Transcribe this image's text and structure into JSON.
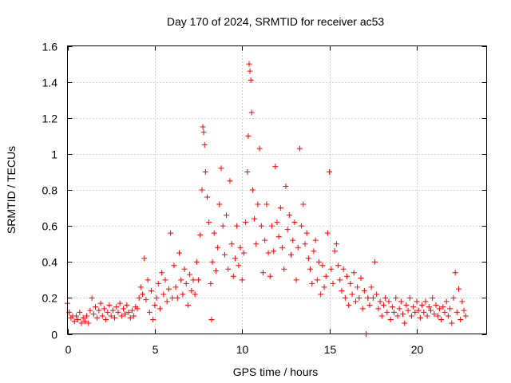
{
  "chart_data": {
    "type": "scatter",
    "title": "Day 170 of 2024, SRMTID for receiver ac53",
    "xlabel": "GPS time / hours",
    "ylabel": "SRMTID / TECUs",
    "xlim": [
      0,
      24
    ],
    "ylim": [
      0,
      1.6
    ],
    "x_ticks": [
      0,
      5,
      10,
      15,
      20
    ],
    "x_tick_labels": [
      "0",
      "5",
      "10",
      "15",
      "20"
    ],
    "y_ticks": [
      0,
      0.2,
      0.4,
      0.6,
      0.8,
      1.0,
      1.2,
      1.4,
      1.6
    ],
    "y_tick_labels": [
      "0",
      "0.2",
      "0.4",
      "0.6",
      "0.8",
      "1",
      "1.2",
      "1.4",
      "1.6"
    ],
    "grid": true,
    "marker": "+",
    "color": "#ff0000",
    "series": [
      {
        "name": "SRMTID",
        "points": [
          [
            0.0,
            0.17
          ],
          [
            0.1,
            0.12
          ],
          [
            0.2,
            0.09
          ],
          [
            0.3,
            0.1
          ],
          [
            0.4,
            0.07
          ],
          [
            0.5,
            0.1
          ],
          [
            0.6,
            0.08
          ],
          [
            0.7,
            0.12
          ],
          [
            0.8,
            0.06
          ],
          [
            0.9,
            0.09
          ],
          [
            1.0,
            0.07
          ],
          [
            1.1,
            0.1
          ],
          [
            1.2,
            0.06
          ],
          [
            1.3,
            0.13
          ],
          [
            1.4,
            0.2
          ],
          [
            1.5,
            0.11
          ],
          [
            1.6,
            0.15
          ],
          [
            1.7,
            0.09
          ],
          [
            1.8,
            0.13
          ],
          [
            1.9,
            0.17
          ],
          [
            2.0,
            0.1
          ],
          [
            2.1,
            0.14
          ],
          [
            2.2,
            0.08
          ],
          [
            2.3,
            0.12
          ],
          [
            2.4,
            0.16
          ],
          [
            2.5,
            0.1
          ],
          [
            2.6,
            0.13
          ],
          [
            2.7,
            0.09
          ],
          [
            2.8,
            0.15
          ],
          [
            2.9,
            0.12
          ],
          [
            3.0,
            0.17
          ],
          [
            3.1,
            0.1
          ],
          [
            3.2,
            0.14
          ],
          [
            3.3,
            0.11
          ],
          [
            3.4,
            0.16
          ],
          [
            3.5,
            0.12
          ],
          [
            3.6,
            0.09
          ],
          [
            3.7,
            0.13
          ],
          [
            3.8,
            0.1
          ],
          [
            3.9,
            0.15
          ],
          [
            4.0,
            0.14
          ],
          [
            4.1,
            0.2
          ],
          [
            4.2,
            0.26
          ],
          [
            4.3,
            0.22
          ],
          [
            4.4,
            0.42
          ],
          [
            4.5,
            0.19
          ],
          [
            4.6,
            0.3
          ],
          [
            4.7,
            0.12
          ],
          [
            4.8,
            0.24
          ],
          [
            4.9,
            0.08
          ],
          [
            5.0,
            0.16
          ],
          [
            5.1,
            0.2
          ],
          [
            5.2,
            0.28
          ],
          [
            5.3,
            0.14
          ],
          [
            5.4,
            0.34
          ],
          [
            5.5,
            0.22
          ],
          [
            5.6,
            0.3
          ],
          [
            5.7,
            0.18
          ],
          [
            5.8,
            0.25
          ],
          [
            5.9,
            0.56
          ],
          [
            6.0,
            0.2
          ],
          [
            6.1,
            0.38
          ],
          [
            6.2,
            0.26
          ],
          [
            6.3,
            0.2
          ],
          [
            6.4,
            0.45
          ],
          [
            6.5,
            0.3
          ],
          [
            6.6,
            0.22
          ],
          [
            6.7,
            0.36
          ],
          [
            6.8,
            0.28
          ],
          [
            6.9,
            0.16
          ],
          [
            7.0,
            0.33
          ],
          [
            7.1,
            0.24
          ],
          [
            7.2,
            0.3
          ],
          [
            7.3,
            0.22
          ],
          [
            7.4,
            0.4
          ],
          [
            7.5,
            0.3
          ],
          [
            7.6,
            0.55
          ],
          [
            7.7,
            0.8
          ],
          [
            7.75,
            1.15
          ],
          [
            7.8,
            1.12
          ],
          [
            7.85,
            1.05
          ],
          [
            7.9,
            0.9
          ],
          [
            8.0,
            0.76
          ],
          [
            8.1,
            0.62
          ],
          [
            8.2,
            0.28
          ],
          [
            8.25,
            0.08
          ],
          [
            8.3,
            0.4
          ],
          [
            8.4,
            0.56
          ],
          [
            8.5,
            0.35
          ],
          [
            8.6,
            0.48
          ],
          [
            8.7,
            0.72
          ],
          [
            8.8,
            0.92
          ],
          [
            8.9,
            0.6
          ],
          [
            9.0,
            0.44
          ],
          [
            9.1,
            0.66
          ],
          [
            9.2,
            0.36
          ],
          [
            9.3,
            0.85
          ],
          [
            9.4,
            0.5
          ],
          [
            9.5,
            0.32
          ],
          [
            9.6,
            0.42
          ],
          [
            9.7,
            0.6
          ],
          [
            9.8,
            0.38
          ],
          [
            9.9,
            0.48
          ],
          [
            10.0,
            0.3
          ],
          [
            10.1,
            0.45
          ],
          [
            10.2,
            0.62
          ],
          [
            10.3,
            0.9
          ],
          [
            10.35,
            1.1
          ],
          [
            10.4,
            1.5
          ],
          [
            10.45,
            1.46
          ],
          [
            10.5,
            1.41
          ],
          [
            10.55,
            1.23
          ],
          [
            10.6,
            0.8
          ],
          [
            10.7,
            0.64
          ],
          [
            10.8,
            0.5
          ],
          [
            10.9,
            0.72
          ],
          [
            11.0,
            1.03
          ],
          [
            11.1,
            0.6
          ],
          [
            11.2,
            0.34
          ],
          [
            11.3,
            0.52
          ],
          [
            11.4,
            0.72
          ],
          [
            11.5,
            0.45
          ],
          [
            11.6,
            0.32
          ],
          [
            11.7,
            0.6
          ],
          [
            11.8,
            0.46
          ],
          [
            11.9,
            0.93
          ],
          [
            12.0,
            0.62
          ],
          [
            12.1,
            0.54
          ],
          [
            12.2,
            0.7
          ],
          [
            12.3,
            0.48
          ],
          [
            12.4,
            0.36
          ],
          [
            12.5,
            0.82
          ],
          [
            12.6,
            0.58
          ],
          [
            12.7,
            0.66
          ],
          [
            12.8,
            0.44
          ],
          [
            12.9,
            0.52
          ],
          [
            13.0,
            0.62
          ],
          [
            13.1,
            0.3
          ],
          [
            13.2,
            0.48
          ],
          [
            13.3,
            1.03
          ],
          [
            13.4,
            0.6
          ],
          [
            13.5,
            0.72
          ],
          [
            13.6,
            0.5
          ],
          [
            13.7,
            0.56
          ],
          [
            13.8,
            0.42
          ],
          [
            13.9,
            0.36
          ],
          [
            14.0,
            0.28
          ],
          [
            14.1,
            0.46
          ],
          [
            14.2,
            0.52
          ],
          [
            14.3,
            0.3
          ],
          [
            14.4,
            0.4
          ],
          [
            14.5,
            0.22
          ],
          [
            14.6,
            0.38
          ],
          [
            14.7,
            0.26
          ],
          [
            14.8,
            0.32
          ],
          [
            14.9,
            0.56
          ],
          [
            15.0,
            0.9
          ],
          [
            15.1,
            0.36
          ],
          [
            15.2,
            0.28
          ],
          [
            15.3,
            0.46
          ],
          [
            15.4,
            0.5
          ],
          [
            15.5,
            0.38
          ],
          [
            15.6,
            0.3
          ],
          [
            15.7,
            0.24
          ],
          [
            15.8,
            0.36
          ],
          [
            15.9,
            0.2
          ],
          [
            16.0,
            0.32
          ],
          [
            16.1,
            0.16
          ],
          [
            16.2,
            0.28
          ],
          [
            16.3,
            0.22
          ],
          [
            16.4,
            0.34
          ],
          [
            16.5,
            0.18
          ],
          [
            16.6,
            0.26
          ],
          [
            16.7,
            0.2
          ],
          [
            16.8,
            0.31
          ],
          [
            16.9,
            0.14
          ],
          [
            17.0,
            0.24
          ],
          [
            17.1,
            0.0
          ],
          [
            17.2,
            0.2
          ],
          [
            17.3,
            0.16
          ],
          [
            17.4,
            0.26
          ],
          [
            17.5,
            0.2
          ],
          [
            17.6,
            0.4
          ],
          [
            17.7,
            0.22
          ],
          [
            17.8,
            0.14
          ],
          [
            17.9,
            0.18
          ],
          [
            18.0,
            0.1
          ],
          [
            18.1,
            0.16
          ],
          [
            18.2,
            0.2
          ],
          [
            18.3,
            0.12
          ],
          [
            18.4,
            0.18
          ],
          [
            18.5,
            0.08
          ],
          [
            18.6,
            0.15
          ],
          [
            18.7,
            0.12
          ],
          [
            18.8,
            0.2
          ],
          [
            18.9,
            0.1
          ],
          [
            19.0,
            0.14
          ],
          [
            19.1,
            0.18
          ],
          [
            19.2,
            0.11
          ],
          [
            19.3,
            0.06
          ],
          [
            19.4,
            0.16
          ],
          [
            19.5,
            0.13
          ],
          [
            19.6,
            0.2
          ],
          [
            19.7,
            0.1
          ],
          [
            19.8,
            0.15
          ],
          [
            19.9,
            0.12
          ],
          [
            20.0,
            0.18
          ],
          [
            20.1,
            0.13
          ],
          [
            20.2,
            0.09
          ],
          [
            20.3,
            0.16
          ],
          [
            20.4,
            0.12
          ],
          [
            20.5,
            0.18
          ],
          [
            20.6,
            0.1
          ],
          [
            20.7,
            0.15
          ],
          [
            20.8,
            0.13
          ],
          [
            20.9,
            0.2
          ],
          [
            21.0,
            0.11
          ],
          [
            21.1,
            0.16
          ],
          [
            21.2,
            0.1
          ],
          [
            21.3,
            0.14
          ],
          [
            21.4,
            0.08
          ],
          [
            21.5,
            0.15
          ],
          [
            21.6,
            0.12
          ],
          [
            21.7,
            0.18
          ],
          [
            21.8,
            0.1
          ],
          [
            21.9,
            0.14
          ],
          [
            22.0,
            0.06
          ],
          [
            22.1,
            0.2
          ],
          [
            22.2,
            0.34
          ],
          [
            22.3,
            0.12
          ],
          [
            22.4,
            0.25
          ],
          [
            22.5,
            0.08
          ],
          [
            22.6,
            0.18
          ],
          [
            22.7,
            0.13
          ],
          [
            22.8,
            0.1
          ]
        ]
      }
    ]
  }
}
